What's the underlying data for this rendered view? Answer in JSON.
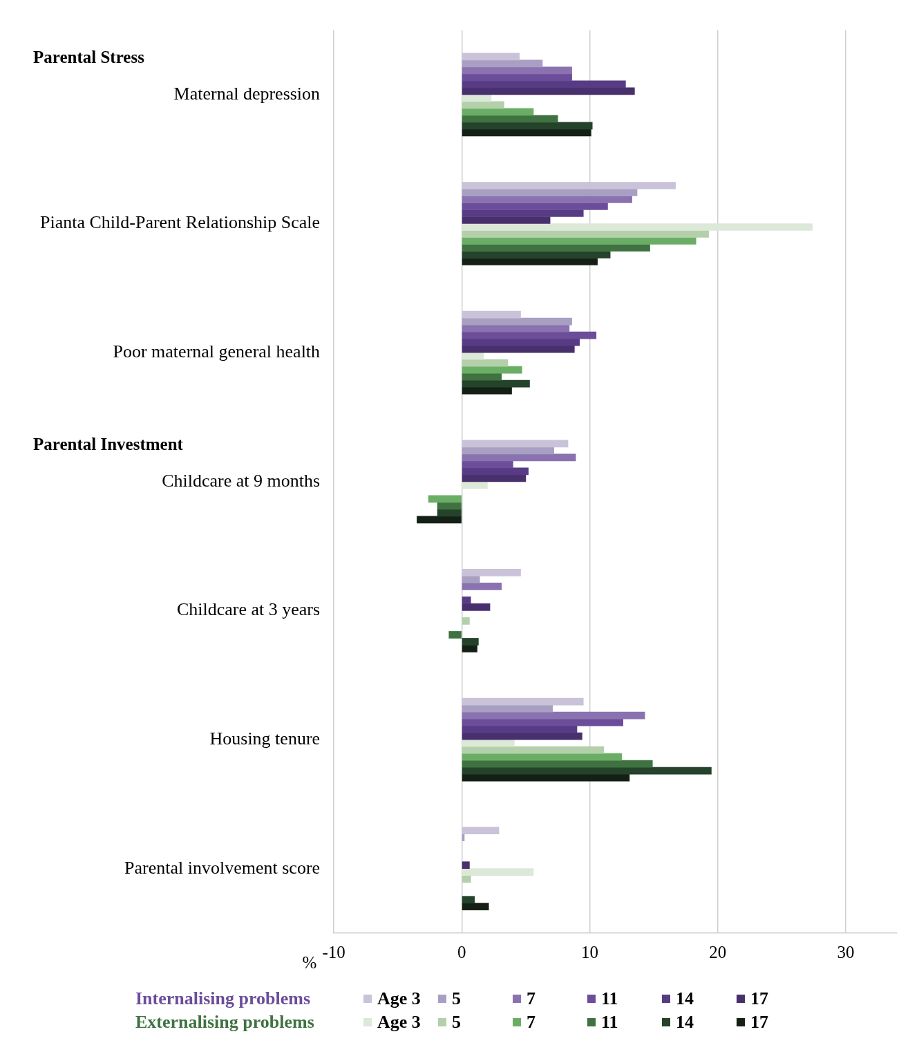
{
  "chart_data": {
    "type": "bar",
    "orientation": "horizontal",
    "xlabel": "%",
    "categories": [
      "Maternal depression",
      "Pianta Child-Parent Relationship Scale",
      "Poor maternal general health",
      "Childcare at 9 months",
      "Childcare at 3 years",
      "Housing tenure",
      "Parental involvement score"
    ],
    "series": [
      {
        "name": "Age 3",
        "color": "#c9c2d8",
        "values": [
          4.5,
          16.7,
          4.6,
          8.3,
          4.6,
          9.5,
          2.9
        ]
      },
      {
        "name": "5",
        "color": "#a99fc3",
        "values": [
          6.3,
          13.7,
          8.6,
          7.2,
          1.4,
          7.1,
          0.2
        ]
      },
      {
        "name": "7",
        "color": "#8a72b0",
        "values": [
          8.6,
          13.3,
          8.4,
          8.9,
          3.1,
          14.3,
          null
        ]
      },
      {
        "name": "11",
        "color": "#6b4d9a",
        "values": [
          8.6,
          11.4,
          10.5,
          4.0,
          null,
          12.6,
          null
        ]
      },
      {
        "name": "14",
        "color": "#573c85",
        "values": [
          12.8,
          9.5,
          9.2,
          5.2,
          0.7,
          9.0,
          null
        ]
      },
      {
        "name": "17",
        "color": "#47306c",
        "values": [
          13.5,
          6.9,
          8.8,
          5.0,
          2.2,
          9.4,
          0.6
        ]
      },
      {
        "name": "Age 3",
        "color": "#dce8d8",
        "values": [
          2.3,
          27.4,
          1.7,
          2.0,
          null,
          4.1,
          5.6
        ]
      },
      {
        "name": "5",
        "color": "#b3d0ab",
        "values": [
          3.3,
          19.3,
          3.6,
          null,
          0.6,
          11.1,
          0.7
        ]
      },
      {
        "name": "7",
        "color": "#6aae65",
        "values": [
          5.6,
          18.3,
          4.7,
          -2.6,
          null,
          12.5,
          null
        ]
      },
      {
        "name": "11",
        "color": "#3f7240",
        "values": [
          7.5,
          14.7,
          3.1,
          -1.9,
          -1.0,
          14.9,
          null
        ]
      },
      {
        "name": "14",
        "color": "#24432a",
        "values": [
          10.2,
          11.6,
          5.3,
          -1.9,
          1.3,
          19.5,
          1.0
        ]
      },
      {
        "name": "17",
        "color": "#142015",
        "values": [
          10.1,
          10.6,
          3.9,
          -3.5,
          1.2,
          13.1,
          2.1
        ]
      }
    ],
    "xlim": [
      -10,
      34
    ],
    "xticks": [
      -10,
      0,
      10,
      20,
      30
    ],
    "grid": "x",
    "legend": "bottom",
    "annotations": [
      "Parental Stress",
      "Parental Investment",
      "Internalising problems",
      "Externalising problems"
    ]
  }
}
